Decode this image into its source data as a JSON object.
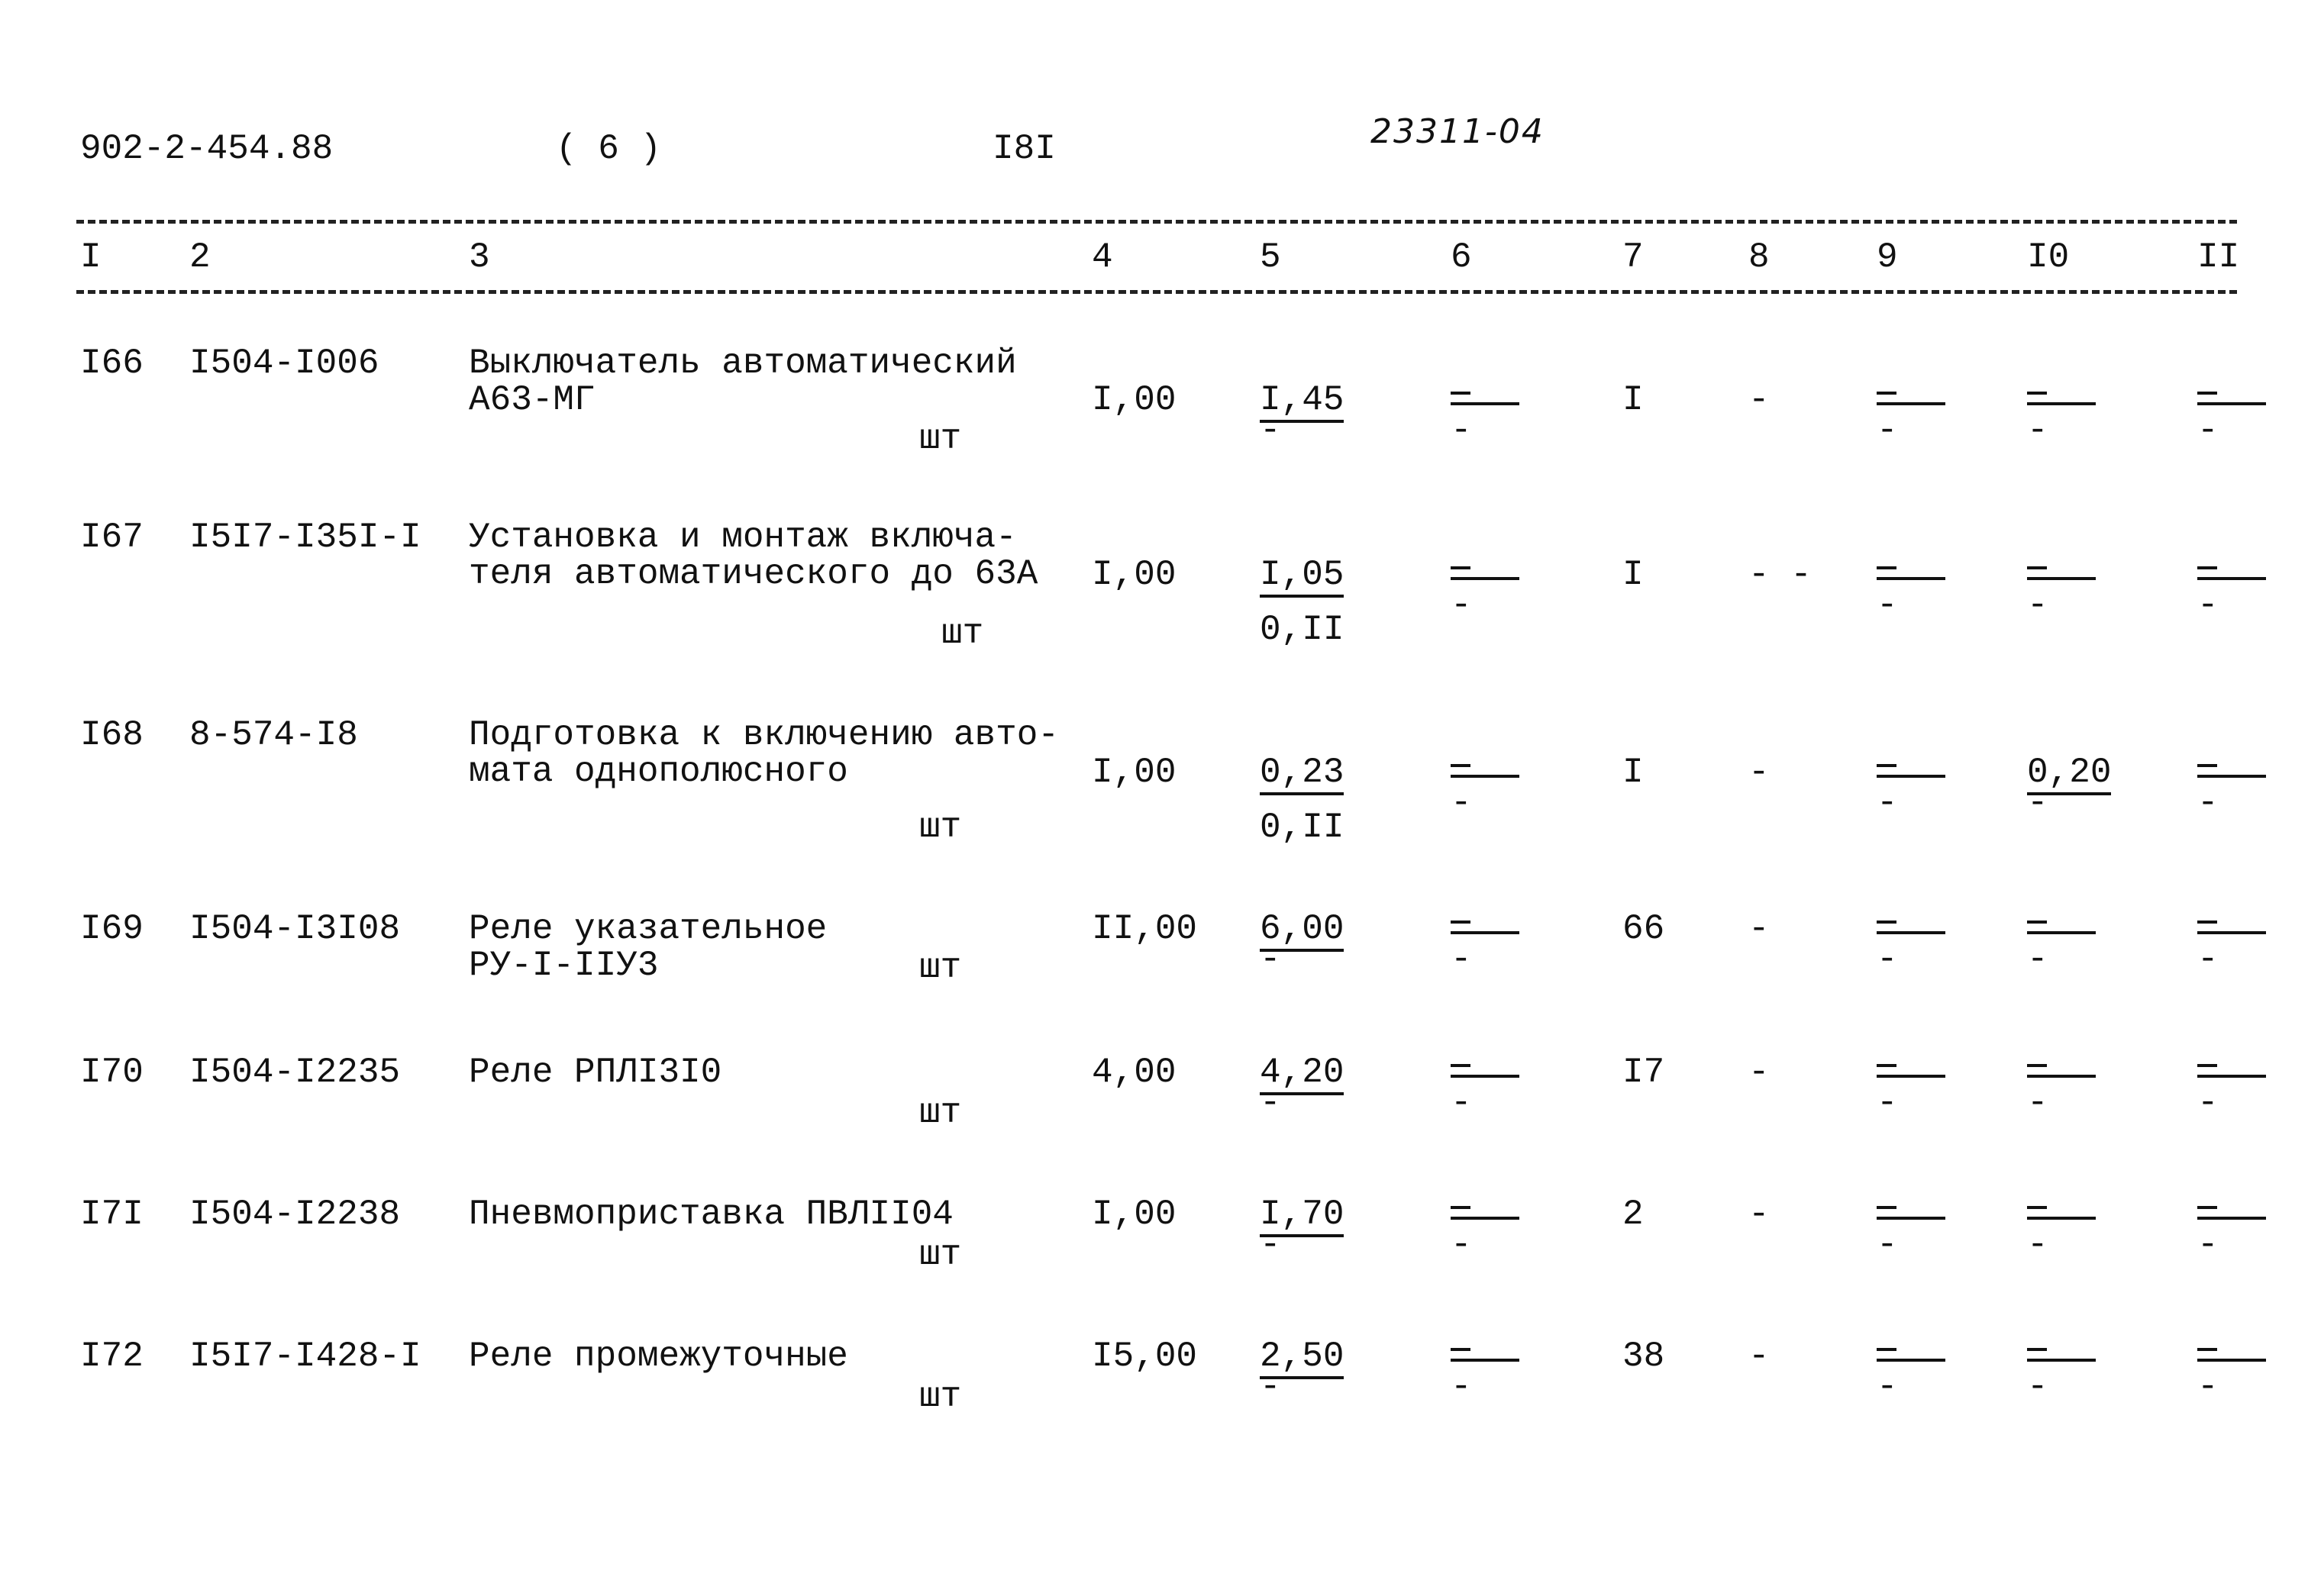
{
  "header": {
    "doc_code": "902-2-454.88",
    "sheet": "( 6 )",
    "page": "I8I",
    "handwritten": "23311-04"
  },
  "columns": [
    "I",
    "2",
    "3",
    "4",
    "5",
    "6",
    "7",
    "8",
    "9",
    "I0",
    "II"
  ],
  "rows": [
    {
      "num": "I66",
      "code": "I504-I006",
      "name": [
        "Выключатель автоматический",
        "А63-МГ"
      ],
      "unit": "шт",
      "c4": "I,00",
      "c5": "I,45",
      "c5b": "-",
      "c6": "-",
      "c6b": "-",
      "c7": "I",
      "c8": "-",
      "c9": "-",
      "c9b": "-",
      "c10": "-",
      "c10b": "-",
      "c11": "-",
      "c11b": "-"
    },
    {
      "num": "I67",
      "code": "I5I7-I35I-I",
      "name": [
        "Установка и монтаж включа-",
        "теля автоматического до 63А"
      ],
      "unit": "шт",
      "c4": "I,00",
      "c5": "I,05",
      "c5b": "0,II",
      "c6": "-",
      "c6b": "-",
      "c7": "I",
      "c8": "- -",
      "c9": "-",
      "c9b": "-",
      "c10": "-",
      "c10b": "-",
      "c11": "-",
      "c11b": "-"
    },
    {
      "num": "I68",
      "code": "8-574-I8",
      "name": [
        "Подготовка к включению авто-",
        "мата однополюсного"
      ],
      "unit": "шт",
      "c4": "I,00",
      "c5": "0,23",
      "c5b": "0,II",
      "c6": "-",
      "c6b": "-",
      "c7": "I",
      "c8": "-",
      "c9": "-",
      "c9b": "-",
      "c10": "0,20",
      "c10b": "-",
      "c11": "-",
      "c11b": "-"
    },
    {
      "num": "I69",
      "code": "I504-I3I08",
      "name": [
        "Реле указательное",
        "РУ-I-IIУ3"
      ],
      "unit": "шт",
      "c4": "II,00",
      "c5": "6,00",
      "c5b": "-",
      "c6": "-",
      "c6b": "-",
      "c7": "66",
      "c8": "-",
      "c9": "-",
      "c9b": "-",
      "c10": "-",
      "c10b": "-",
      "c11": "-",
      "c11b": "-"
    },
    {
      "num": "I70",
      "code": "I504-I2235",
      "name": [
        "Реле РПЛI3I0"
      ],
      "unit": "шт",
      "c4": "4,00",
      "c5": "4,20",
      "c5b": "-",
      "c6": "-",
      "c6b": "-",
      "c7": "I7",
      "c8": "-",
      "c9": "-",
      "c9b": "-",
      "c10": "-",
      "c10b": "-",
      "c11": "-",
      "c11b": "-"
    },
    {
      "num": "I7I",
      "code": "I504-I2238",
      "name": [
        "Пневмоприставка ПВЛII04"
      ],
      "unit": "шт",
      "c4": "I,00",
      "c5": "I,70",
      "c5b": "-",
      "c6": "-",
      "c6b": "-",
      "c7": "2",
      "c8": "-",
      "c9": "-",
      "c9b": "-",
      "c10": "-",
      "c10b": "-",
      "c11": "-",
      "c11b": "-"
    },
    {
      "num": "I72",
      "code": "I5I7-I428-I",
      "name": [
        "Реле промежуточные"
      ],
      "unit": "шт",
      "c4": "I5,00",
      "c5": "2,50",
      "c5b": "-",
      "c6": "-",
      "c6b": "-",
      "c7": "38",
      "c8": "-",
      "c9": "-",
      "c9b": "-",
      "c10": "-",
      "c10b": "-",
      "c11": "-",
      "c11b": "-"
    }
  ]
}
